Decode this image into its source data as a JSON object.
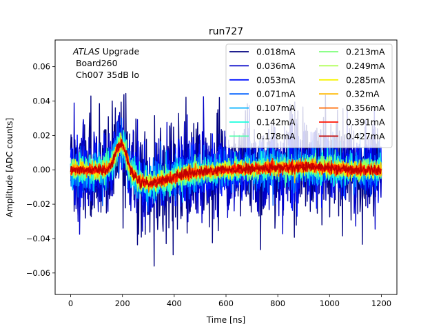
{
  "chart_data": {
    "type": "line",
    "title": "run727",
    "xlabel": "Time [ns]",
    "ylabel": "Amplitude [ADC counts]",
    "xlim": [
      -60,
      1260
    ],
    "ylim": [
      -0.0725,
      0.0755
    ],
    "xticks": [
      0,
      200,
      400,
      600,
      800,
      1000,
      1200
    ],
    "yticks": [
      -0.06,
      -0.04,
      -0.02,
      0.0,
      0.02,
      0.04,
      0.06
    ],
    "xtick_labels": [
      "0",
      "200",
      "400",
      "600",
      "800",
      "1000",
      "1200"
    ],
    "ytick_labels": [
      "−0.06",
      "−0.04",
      "−0.02",
      "0.00",
      "0.02",
      "0.04",
      "0.06"
    ],
    "grid": false,
    "legend_position": "top-right",
    "legend_columns": 2,
    "annotation": {
      "italic_part": "ATLAS",
      "rest_line1": " Upgrade",
      "line2": " Board260",
      "line3": " Ch007 35dB lo"
    },
    "pulse": {
      "time_ns": [
        0,
        140,
        160,
        180,
        195,
        210,
        230,
        260,
        300,
        360,
        460,
        600,
        800,
        920,
        1000,
        1100,
        1200
      ],
      "amplitude": [
        0.0,
        0.0,
        0.004,
        0.012,
        0.016,
        0.011,
        0.0,
        -0.006,
        -0.008,
        -0.006,
        -0.002,
        0.0,
        0.001,
        0.002,
        0.001,
        0.0,
        0.0
      ]
    },
    "series": [
      {
        "name": "0.018mA",
        "color": "#00007f",
        "noise": 0.0155
      },
      {
        "name": "0.036mA",
        "color": "#0000c8",
        "noise": 0.0115
      },
      {
        "name": "0.053mA",
        "color": "#0010ff",
        "noise": 0.0085
      },
      {
        "name": "0.071mA",
        "color": "#0060ff",
        "noise": 0.0065
      },
      {
        "name": "0.107mA",
        "color": "#00b0ff",
        "noise": 0.005
      },
      {
        "name": "0.142mA",
        "color": "#19ffde",
        "noise": 0.004
      },
      {
        "name": "0.178mA",
        "color": "#4dffaa",
        "noise": 0.0033
      },
      {
        "name": "0.213mA",
        "color": "#7dff7a",
        "noise": 0.0028
      },
      {
        "name": "0.249mA",
        "color": "#aaff4d",
        "noise": 0.0024
      },
      {
        "name": "0.285mA",
        "color": "#f6f400",
        "noise": 0.0021
      },
      {
        "name": "0.32mA",
        "color": "#ffb900",
        "noise": 0.0019
      },
      {
        "name": "0.356mA",
        "color": "#ff6800",
        "noise": 0.0017
      },
      {
        "name": "0.391mA",
        "color": "#ff1300",
        "noise": 0.0015
      },
      {
        "name": "0.427mA",
        "color": "#c00000",
        "noise": 0.0014
      }
    ]
  }
}
